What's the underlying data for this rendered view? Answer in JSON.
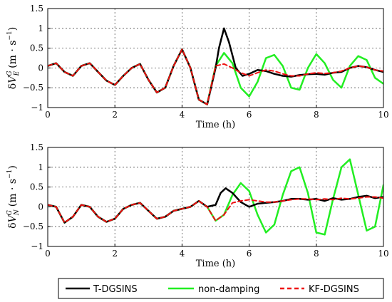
{
  "legend": {
    "entries": [
      {
        "label": "T-DGSINS",
        "color": "#000000",
        "dash": "solid"
      },
      {
        "label": "non-damping",
        "color": "#22ee22",
        "dash": "solid"
      },
      {
        "label": "KF-DGSINS",
        "color": "#ee1111",
        "dash": "dashed"
      }
    ]
  },
  "chart_data": [
    {
      "type": "line",
      "xlabel": "Time (h)",
      "ylabel": {
        "delta": "δ",
        "var": "V",
        "sup": "G",
        "sub": "E",
        "unit_main": "(m · s",
        "unit_sup": "−1",
        "unit_close": ")"
      },
      "xlim": [
        0,
        10
      ],
      "ylim": [
        -1,
        1.5
      ],
      "xticks": [
        0,
        2,
        4,
        6,
        8,
        10
      ],
      "yticks": [
        -1,
        -0.5,
        0,
        0.5,
        1,
        1.5
      ],
      "ytick_labels": [
        "−1",
        "−0.5",
        "0",
        "0.5",
        "1",
        "1.5"
      ],
      "grid": true,
      "series": [
        {
          "name": "non-damping",
          "color": "#22ee22",
          "dash": "solid",
          "x": [
            0,
            0.25,
            0.5,
            0.75,
            1,
            1.25,
            1.5,
            1.75,
            2,
            2.25,
            2.5,
            2.75,
            3,
            3.25,
            3.5,
            3.75,
            4,
            4.25,
            4.5,
            4.75,
            5,
            5.25,
            5.5,
            5.75,
            6,
            6.25,
            6.5,
            6.75,
            7,
            7.25,
            7.5,
            7.75,
            8,
            8.25,
            8.5,
            8.75,
            9,
            9.25,
            9.5,
            9.75,
            10
          ],
          "y": [
            0.05,
            0.12,
            -0.1,
            -0.2,
            0.05,
            0.12,
            -0.1,
            -0.32,
            -0.43,
            -0.2,
            0.0,
            0.1,
            -0.3,
            -0.62,
            -0.5,
            0.05,
            0.47,
            0.0,
            -0.8,
            -0.92,
            0.05,
            0.38,
            0.12,
            -0.5,
            -0.72,
            -0.35,
            0.25,
            0.33,
            0.05,
            -0.5,
            -0.55,
            0.0,
            0.35,
            0.12,
            -0.3,
            -0.5,
            0.05,
            0.3,
            0.2,
            -0.25,
            -0.4
          ]
        },
        {
          "name": "T-DGSINS",
          "color": "#000000",
          "dash": "solid",
          "x": [
            0,
            0.25,
            0.5,
            0.75,
            1,
            1.25,
            1.5,
            1.75,
            2,
            2.25,
            2.5,
            2.75,
            3,
            3.25,
            3.5,
            3.75,
            4,
            4.25,
            4.5,
            4.75,
            5,
            5.1,
            5.25,
            5.4,
            5.6,
            5.8,
            6,
            6.25,
            6.5,
            6.75,
            7,
            7.25,
            7.5,
            7.75,
            8,
            8.25,
            8.5,
            8.75,
            9,
            9.25,
            9.5,
            9.75,
            10
          ],
          "y": [
            0.05,
            0.12,
            -0.1,
            -0.2,
            0.05,
            0.12,
            -0.1,
            -0.32,
            -0.43,
            -0.2,
            0.0,
            0.1,
            -0.3,
            -0.62,
            -0.5,
            0.05,
            0.47,
            0.0,
            -0.8,
            -0.92,
            0.0,
            0.5,
            1.0,
            0.65,
            0.0,
            -0.2,
            -0.15,
            -0.05,
            -0.08,
            -0.15,
            -0.2,
            -0.22,
            -0.18,
            -0.16,
            -0.15,
            -0.17,
            -0.12,
            -0.1,
            0.0,
            0.05,
            0.02,
            -0.05,
            -0.1
          ]
        },
        {
          "name": "KF-DGSINS",
          "color": "#ee1111",
          "dash": "dashed",
          "x": [
            0,
            0.25,
            0.5,
            0.75,
            1,
            1.25,
            1.5,
            1.75,
            2,
            2.25,
            2.5,
            2.75,
            3,
            3.25,
            3.5,
            3.75,
            4,
            4.25,
            4.5,
            4.75,
            5,
            5.25,
            5.5,
            5.75,
            6,
            6.25,
            6.5,
            6.75,
            7,
            7.25,
            7.5,
            7.75,
            8,
            8.25,
            8.5,
            8.75,
            9,
            9.25,
            9.5,
            9.75,
            10
          ],
          "y": [
            0.05,
            0.12,
            -0.1,
            -0.2,
            0.05,
            0.12,
            -0.1,
            -0.32,
            -0.43,
            -0.2,
            0.0,
            0.1,
            -0.3,
            -0.62,
            -0.5,
            0.05,
            0.47,
            0.0,
            -0.8,
            -0.92,
            0.05,
            0.1,
            0.0,
            -0.12,
            -0.2,
            -0.12,
            -0.05,
            -0.08,
            -0.15,
            -0.2,
            -0.2,
            -0.15,
            -0.12,
            -0.14,
            -0.12,
            -0.08,
            0.0,
            0.05,
            0.02,
            -0.05,
            -0.08
          ]
        }
      ]
    },
    {
      "type": "line",
      "xlabel": "Time (h)",
      "ylabel": {
        "delta": "δ",
        "var": "V",
        "sup": "G",
        "sub": "N",
        "unit_main": "(m · s",
        "unit_sup": "−1",
        "unit_close": ")"
      },
      "xlim": [
        0,
        10
      ],
      "ylim": [
        -1,
        1.5
      ],
      "xticks": [
        0,
        2,
        4,
        6,
        8,
        10
      ],
      "yticks": [
        -1,
        -0.5,
        0,
        0.5,
        1,
        1.5
      ],
      "ytick_labels": [
        "−1",
        "−0.5",
        "0",
        "0.5",
        "1",
        "1.5"
      ],
      "grid": true,
      "series": [
        {
          "name": "non-damping",
          "color": "#22ee22",
          "dash": "solid",
          "x": [
            0,
            0.25,
            0.5,
            0.75,
            1,
            1.25,
            1.5,
            1.75,
            2,
            2.25,
            2.5,
            2.75,
            3,
            3.25,
            3.5,
            3.75,
            4,
            4.25,
            4.5,
            4.75,
            5,
            5.25,
            5.5,
            5.75,
            6,
            6.25,
            6.5,
            6.75,
            7,
            7.25,
            7.5,
            7.75,
            8,
            8.25,
            8.5,
            8.75,
            9,
            9.25,
            9.5,
            9.75,
            10
          ],
          "y": [
            0.05,
            0.0,
            -0.4,
            -0.25,
            0.05,
            0.0,
            -0.25,
            -0.38,
            -0.3,
            -0.05,
            0.05,
            0.1,
            -0.1,
            -0.3,
            -0.25,
            -0.1,
            -0.05,
            0.0,
            0.15,
            0.0,
            -0.35,
            -0.2,
            0.3,
            0.6,
            0.4,
            -0.2,
            -0.65,
            -0.45,
            0.3,
            0.9,
            1.0,
            0.35,
            -0.65,
            -0.7,
            0.2,
            1.0,
            1.2,
            0.3,
            -0.6,
            -0.5,
            0.55
          ]
        },
        {
          "name": "T-DGSINS",
          "color": "#000000",
          "dash": "solid",
          "x": [
            0,
            0.25,
            0.5,
            0.75,
            1,
            1.25,
            1.5,
            1.75,
            2,
            2.25,
            2.5,
            2.75,
            3,
            3.25,
            3.5,
            3.75,
            4,
            4.25,
            4.5,
            4.75,
            5,
            5.15,
            5.3,
            5.5,
            5.75,
            6,
            6.25,
            6.5,
            6.75,
            7,
            7.25,
            7.5,
            7.75,
            8,
            8.25,
            8.5,
            8.75,
            9,
            9.25,
            9.5,
            9.75,
            10
          ],
          "y": [
            0.05,
            0.0,
            -0.4,
            -0.25,
            0.05,
            0.0,
            -0.25,
            -0.38,
            -0.3,
            -0.05,
            0.05,
            0.1,
            -0.1,
            -0.3,
            -0.25,
            -0.1,
            -0.05,
            0.0,
            0.15,
            0.0,
            0.05,
            0.35,
            0.47,
            0.35,
            0.12,
            0.0,
            0.08,
            0.1,
            0.12,
            0.15,
            0.2,
            0.2,
            0.18,
            0.2,
            0.15,
            0.22,
            0.18,
            0.2,
            0.25,
            0.28,
            0.22,
            0.25
          ]
        },
        {
          "name": "KF-DGSINS",
          "color": "#ee1111",
          "dash": "dashed",
          "x": [
            0,
            0.25,
            0.5,
            0.75,
            1,
            1.25,
            1.5,
            1.75,
            2,
            2.25,
            2.5,
            2.75,
            3,
            3.25,
            3.5,
            3.75,
            4,
            4.25,
            4.5,
            4.75,
            5,
            5.25,
            5.5,
            5.75,
            6,
            6.25,
            6.5,
            6.75,
            7,
            7.25,
            7.5,
            7.75,
            8,
            8.25,
            8.5,
            8.75,
            9,
            9.25,
            9.5,
            9.75,
            10
          ],
          "y": [
            0.05,
            0.0,
            -0.4,
            -0.25,
            0.05,
            0.0,
            -0.25,
            -0.38,
            -0.3,
            -0.05,
            0.05,
            0.1,
            -0.1,
            -0.3,
            -0.25,
            -0.1,
            -0.05,
            0.0,
            0.15,
            0.0,
            -0.35,
            -0.2,
            0.1,
            0.15,
            0.18,
            0.15,
            0.12,
            0.12,
            0.15,
            0.18,
            0.2,
            0.2,
            0.18,
            0.2,
            0.18,
            0.22,
            0.2,
            0.22,
            0.25,
            0.25,
            0.22
          ]
        }
      ]
    }
  ]
}
